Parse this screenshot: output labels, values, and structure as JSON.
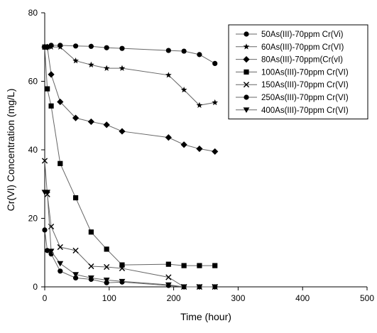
{
  "chart_data": {
    "type": "line",
    "xlabel": "Time (hour)",
    "ylabel": "Cr(VI) Concentration (mg/L)",
    "xlim": [
      0,
      500
    ],
    "ylim": [
      0,
      80
    ],
    "xticks": [
      0,
      100,
      200,
      300,
      400,
      500
    ],
    "yticks": [
      0,
      20,
      40,
      60,
      80
    ],
    "xtick_labels": [
      "0",
      "100",
      "200",
      "300",
      "400",
      "500"
    ],
    "ytick_labels": [
      "0",
      "20",
      "40",
      "60",
      "80"
    ],
    "grid": false,
    "legend_position": "top-right",
    "series": [
      {
        "name": "50As(III)-70ppm Cr(Vi)",
        "marker": "circle",
        "x": [
          0,
          4,
          10,
          24,
          48,
          72,
          96,
          120,
          192,
          216,
          240,
          264
        ],
        "y": [
          70.0,
          70.0,
          70.5,
          70.5,
          70.3,
          70.2,
          69.8,
          69.6,
          69.0,
          68.8,
          67.8,
          65.2
        ]
      },
      {
        "name": "60As(III)-70ppm Cr(VI)",
        "marker": "star",
        "x": [
          0,
          4,
          10,
          24,
          48,
          72,
          96,
          120,
          192,
          216,
          240,
          264
        ],
        "y": [
          70.0,
          70.0,
          70.0,
          70.0,
          66.0,
          64.8,
          63.8,
          63.8,
          61.8,
          57.5,
          53.0,
          53.8
        ]
      },
      {
        "name": "80As(III)-70ppm(Cr(vI)",
        "marker": "diamond",
        "x": [
          0,
          4,
          10,
          24,
          48,
          72,
          96,
          120,
          192,
          216,
          240,
          264
        ],
        "y": [
          70.0,
          70.0,
          62.0,
          54.0,
          49.3,
          48.2,
          47.3,
          45.4,
          43.6,
          41.5,
          40.3,
          39.5
        ]
      },
      {
        "name": "100As(III)-70ppm Cr(VI)",
        "marker": "square",
        "x": [
          0,
          4,
          10,
          24,
          48,
          72,
          96,
          120,
          192,
          216,
          240,
          264
        ],
        "y": [
          70.0,
          57.8,
          52.8,
          36.0,
          26.0,
          16.0,
          11.0,
          6.4,
          6.6,
          6.2,
          6.2,
          6.2
        ]
      },
      {
        "name": "150As(III)-70ppm Cr(VI)",
        "marker": "x",
        "x": [
          0,
          4,
          10,
          24,
          48,
          72,
          96,
          120,
          192,
          216,
          240,
          264
        ],
        "y": [
          36.8,
          27.0,
          17.6,
          11.6,
          10.6,
          6.0,
          5.8,
          5.4,
          2.8,
          0.0,
          0.0,
          0.0
        ]
      },
      {
        "name": "250As(III)-70ppm Cr(VI)",
        "marker": "circle",
        "x": [
          0,
          4,
          10,
          24,
          48,
          72,
          96,
          120,
          192,
          216,
          240,
          264
        ],
        "y": [
          16.6,
          10.6,
          9.6,
          4.6,
          2.6,
          2.2,
          1.2,
          1.4,
          0.4,
          0.0,
          0.0,
          0.0
        ]
      },
      {
        "name": "400As(III)-70ppm Cr(VI)",
        "marker": "triangle-down",
        "x": [
          0,
          4,
          10,
          24,
          48,
          72,
          96,
          120,
          192,
          216,
          240,
          264
        ],
        "y": [
          27.6,
          27.6,
          10.4,
          6.8,
          3.6,
          2.6,
          2.0,
          1.6,
          0.6,
          0.0,
          0.0,
          0.0
        ]
      }
    ]
  }
}
